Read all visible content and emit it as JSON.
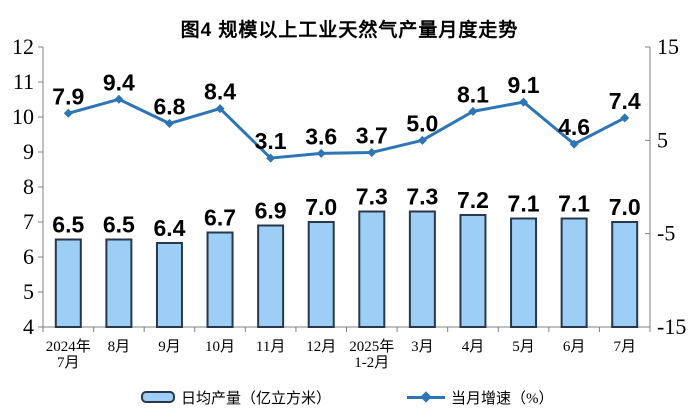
{
  "chart_data": {
    "type": "combo-bar-line",
    "title": "图4 规模以上工业天然气产量月度走势",
    "categories": [
      [
        "2024年",
        "7月"
      ],
      [
        "8月"
      ],
      [
        "9月"
      ],
      [
        "10月"
      ],
      [
        "11月"
      ],
      [
        "12月"
      ],
      [
        "2025年",
        "1-2月"
      ],
      [
        "3月"
      ],
      [
        "4月"
      ],
      [
        "5月"
      ],
      [
        "6月"
      ],
      [
        "7月"
      ]
    ],
    "series": [
      {
        "name": "日均产量（亿立方米）",
        "type": "bar",
        "axis": "left",
        "values": [
          6.5,
          6.5,
          6.4,
          6.7,
          6.9,
          7.0,
          7.3,
          7.3,
          7.2,
          7.1,
          7.1,
          7.0
        ]
      },
      {
        "name": "当月增速（%）",
        "type": "line",
        "axis": "right",
        "values": [
          7.9,
          9.4,
          6.8,
          8.4,
          3.1,
          3.6,
          3.7,
          5.0,
          8.1,
          9.1,
          4.6,
          7.4
        ]
      }
    ],
    "left_axis": {
      "min": 4,
      "max": 12,
      "ticks": [
        12,
        11,
        10,
        9,
        8,
        7,
        6,
        5,
        4
      ]
    },
    "right_axis": {
      "min": -15,
      "max": 15,
      "ticks": [
        15,
        5,
        -5,
        -15
      ]
    },
    "grid": false,
    "legend_position": "bottom",
    "colors": {
      "bar_fill": "#9DCEF5",
      "bar_border": "#28374B",
      "line": "#2E75B6",
      "axis_line": "#808080",
      "text": "#000000",
      "background": "#FFFFFF"
    }
  }
}
